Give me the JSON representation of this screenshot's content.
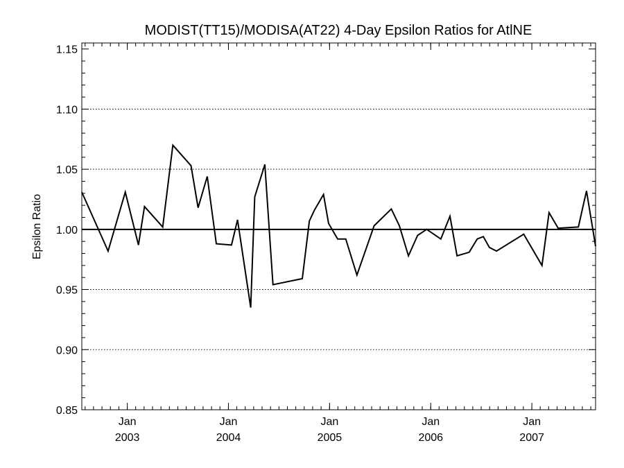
{
  "chart_data": {
    "type": "line",
    "title": "MODIST(TT15)/MODISA(AT22) 4-Day Epsilon Ratios for AtlNE",
    "xlabel": "",
    "ylabel": "Epsilon Ratio",
    "xlim": [
      2002.55,
      2007.63
    ],
    "ylim": [
      0.85,
      1.155
    ],
    "y_ticks": [
      0.85,
      0.9,
      0.95,
      1.0,
      1.05,
      1.1,
      1.15
    ],
    "y_tick_labels": [
      "0.85",
      "0.90",
      "0.95",
      "1.00",
      "1.05",
      "1.10",
      "1.15"
    ],
    "y_grid": [
      0.9,
      0.95,
      1.05,
      1.1
    ],
    "reference_line": 1.0,
    "x_major_ticks": [
      {
        "x": 2003.0,
        "month": "Jan",
        "year": "2003"
      },
      {
        "x": 2004.0,
        "month": "Jan",
        "year": "2004"
      },
      {
        "x": 2005.0,
        "month": "Jan",
        "year": "2005"
      },
      {
        "x": 2006.0,
        "month": "Jan",
        "year": "2006"
      },
      {
        "x": 2007.0,
        "month": "Jan",
        "year": "2007"
      }
    ],
    "x_minor_step": 0.0833333,
    "series": [
      {
        "x": [
          2002.55,
          2002.81,
          2002.98,
          2003.11,
          2003.17,
          2003.35,
          2003.45,
          2003.63,
          2003.7,
          2003.79,
          2003.88,
          2004.03,
          2004.09,
          2004.22,
          2004.26,
          2004.36,
          2004.44,
          2004.73,
          2004.8,
          2004.85,
          2004.94,
          2004.99,
          2005.08,
          2005.16,
          2005.27,
          2005.44,
          2005.61,
          2005.69,
          2005.78,
          2005.87,
          2005.96,
          2006.1,
          2006.19,
          2006.26,
          2006.38,
          2006.46,
          2006.52,
          2006.58,
          2006.65,
          2006.92,
          2007.1,
          2007.17,
          2007.26,
          2007.46,
          2007.54,
          2007.63
        ],
        "y": [
          1.031,
          0.982,
          1.031,
          0.987,
          1.019,
          1.002,
          1.07,
          1.053,
          1.018,
          1.044,
          0.988,
          0.987,
          1.008,
          0.935,
          1.027,
          1.054,
          0.954,
          0.959,
          1.007,
          1.016,
          1.029,
          1.005,
          0.992,
          0.992,
          0.962,
          1.003,
          1.017,
          1.003,
          0.978,
          0.995,
          1.0,
          0.992,
          1.011,
          0.978,
          0.981,
          0.992,
          0.994,
          0.985,
          0.982,
          0.996,
          0.97,
          1.014,
          1.001,
          1.002,
          1.032,
          0.986
        ]
      }
    ]
  }
}
